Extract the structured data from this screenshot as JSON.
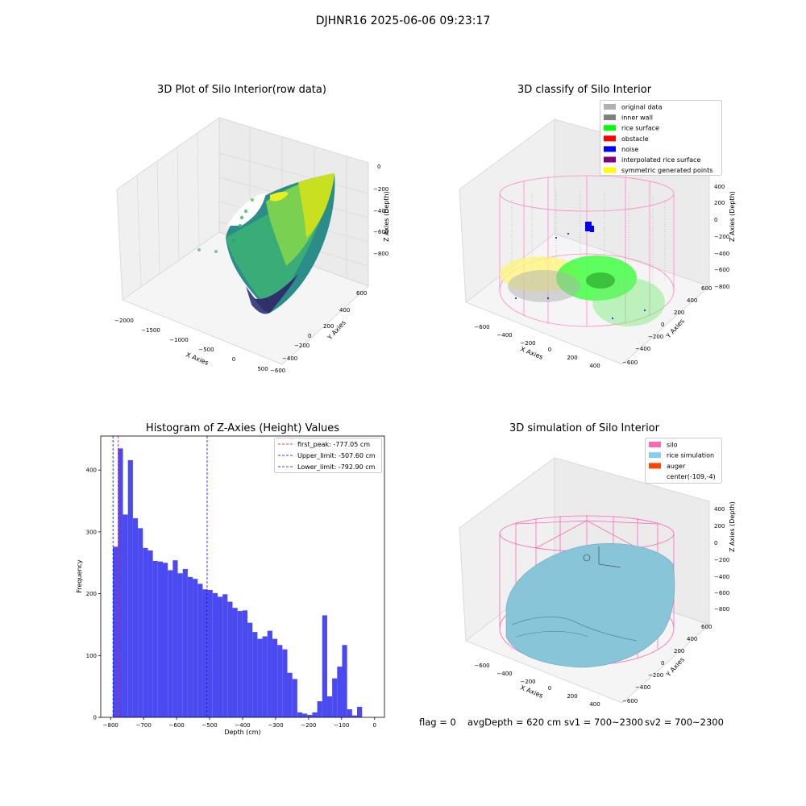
{
  "suptitle": "DJHNR16 2025-06-06 09:23:17",
  "panels": {
    "raw": {
      "title": "3D Plot of Silo Interior(row data)",
      "xlabel": "X Axies",
      "ylabel": "Y Axies",
      "zlabel": "Z Axies (Depth)",
      "xticks": [
        "−2000",
        "−1500",
        "−1000",
        "−500",
        "0",
        "500"
      ],
      "yticks": [
        "600",
        "400",
        "200",
        "0",
        "−200",
        "−400",
        "−600"
      ],
      "zticks": [
        "0",
        "−200",
        "−400",
        "−600",
        "−800"
      ]
    },
    "classify": {
      "title": "3D classify of Silo Interior",
      "xlabel": "X Axies",
      "ylabel": "Y Axies",
      "zlabel": "Z Axies (Depth)",
      "xticks": [
        "−600",
        "−400",
        "−200",
        "0",
        "200",
        "400"
      ],
      "yticks": [
        "600",
        "400",
        "200",
        "0",
        "−200",
        "−400",
        "−600"
      ],
      "zticks": [
        "400",
        "200",
        "0",
        "−200",
        "−400",
        "−600",
        "−800"
      ],
      "legend": [
        {
          "label": "original data",
          "color": "#b0b0b0"
        },
        {
          "label": "inner wall",
          "color": "#808080"
        },
        {
          "label": "rice surface",
          "color": "#00ff00"
        },
        {
          "label": "obstacle",
          "color": "#ff0000"
        },
        {
          "label": "noise",
          "color": "#0000ff"
        },
        {
          "label": "interpolated rice surface",
          "color": "#800080"
        },
        {
          "label": "symmetric generated points",
          "color": "#ffff00"
        }
      ]
    },
    "simulation": {
      "title": "3D simulation of Silo Interior",
      "xlabel": "X Axies",
      "ylabel": "Y Axies",
      "zlabel": "Z Axies (Depth)",
      "xticks": [
        "−600",
        "−400",
        "−200",
        "0",
        "200",
        "400"
      ],
      "yticks": [
        "600",
        "400",
        "200",
        "0",
        "−200",
        "−400",
        "−600"
      ],
      "zticks": [
        "400",
        "200",
        "0",
        "−200",
        "−400",
        "−600",
        "−800"
      ],
      "legend": [
        {
          "label": "silo",
          "color": "#ff69b4"
        },
        {
          "label": "rice simulation",
          "color": "#87ceeb"
        },
        {
          "label": "auger",
          "color": "#ff4500"
        },
        {
          "label": "center(-109,-4)",
          "color": ""
        }
      ]
    }
  },
  "chart_data": {
    "type": "bar",
    "title": "Histogram of Z-Axies (Height) Values",
    "xlabel": "Depth (cm)",
    "ylabel": "Frequency",
    "xlim": [
      -830,
      30
    ],
    "ylim": [
      0,
      455
    ],
    "xticks": [
      -800,
      -700,
      -600,
      -500,
      -400,
      -300,
      -200,
      -100,
      0
    ],
    "xtick_labels": [
      "−800",
      "−700",
      "−600",
      "−500",
      "−400",
      "−300",
      "−200",
      "−100",
      "0"
    ],
    "yticks": [
      0,
      100,
      200,
      300,
      400
    ],
    "bar_color": "#4a4af0",
    "bin_start": -792.9,
    "bin_width": 15.1,
    "values": [
      276,
      435,
      328,
      416,
      322,
      306,
      274,
      270,
      253,
      252,
      250,
      238,
      254,
      233,
      240,
      227,
      224,
      216,
      207,
      206,
      201,
      195,
      199,
      187,
      177,
      172,
      173,
      153,
      138,
      127,
      131,
      140,
      127,
      117,
      110,
      72,
      62,
      8,
      6,
      4,
      8,
      26,
      165,
      34,
      63,
      82,
      117,
      13,
      3,
      17
    ],
    "vlines": [
      {
        "x": -777.05,
        "color": "#ff0000",
        "label": "first_peak: -777.05 cm"
      },
      {
        "x": -507.6,
        "color": "#0000ff",
        "label": "Upper_limit: -507.60 cm"
      },
      {
        "x": -792.9,
        "color": "#0000ff",
        "label": "Lower_limit: -792.90 cm"
      }
    ],
    "legend_position": "upper-right"
  },
  "status": {
    "flag": "flag = 0",
    "avg": "avgDepth = 620 cm",
    "sv1": "sv1 = 700~2300",
    "sv2": "sv2 = 700~2300"
  }
}
